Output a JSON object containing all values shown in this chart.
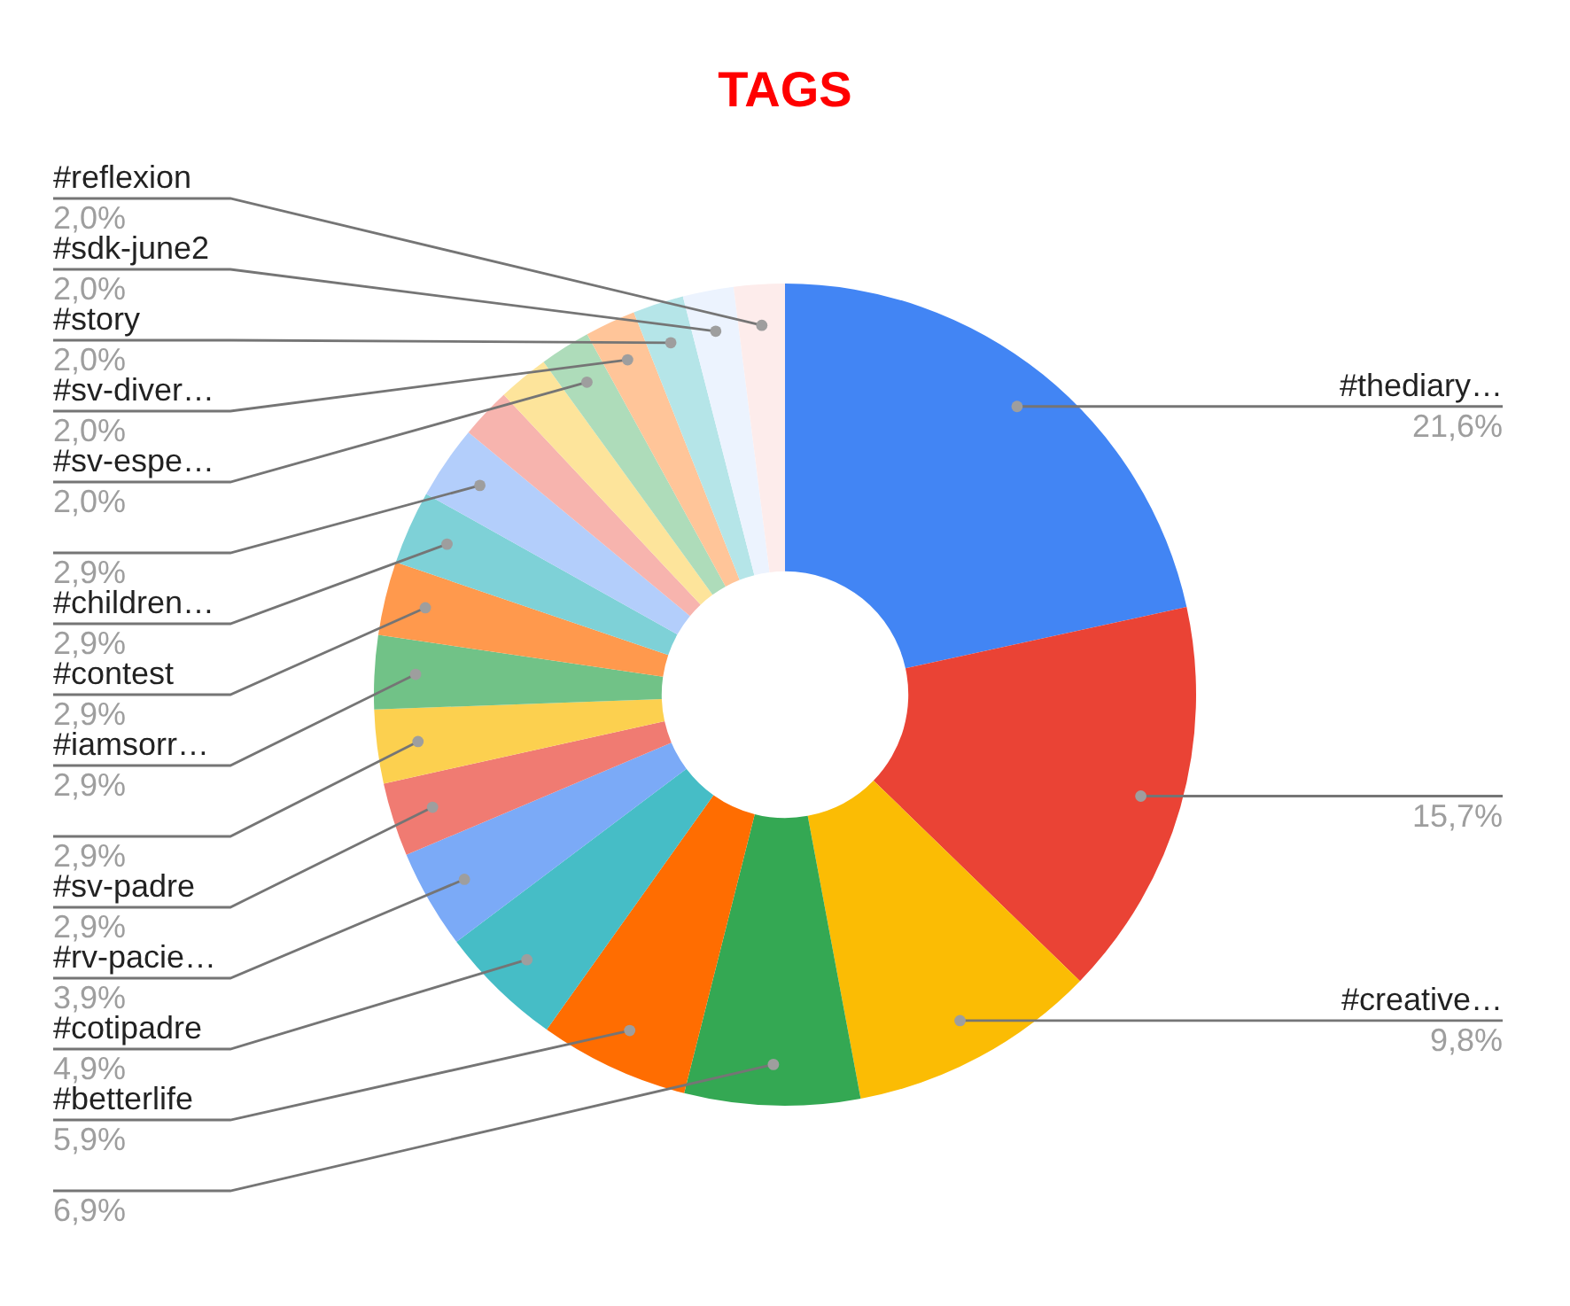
{
  "chart_data": {
    "type": "donut",
    "title": "TAGS",
    "categories": [
      "#thediary…",
      null,
      "#creative…",
      null,
      "#betterlife",
      "#cotipadre",
      "#rv-pacie…",
      "#sv-padre",
      null,
      "#iamsorr…",
      "#contest",
      "#children…",
      null,
      null,
      null,
      "#sv-espe…",
      "#sv-diver…",
      "#story",
      "#sdk-june2",
      "#reflexion"
    ],
    "values": [
      21.6,
      15.7,
      9.8,
      6.9,
      5.9,
      4.9,
      3.9,
      2.9,
      2.9,
      2.9,
      2.9,
      2.9,
      2.9,
      2.0,
      2.0,
      2.0,
      2.0,
      2.0,
      2.0,
      2.0
    ],
    "colors": [
      "#4285f4",
      "#ea4335",
      "#fbbc04",
      "#34a853",
      "#ff6d01",
      "#46bdc6",
      "#7baaf7",
      "#f07b72",
      "#fcd04f",
      "#71c287",
      "#ff994d",
      "#7ed1d7",
      "#b3cefb",
      "#f7b4ae",
      "#fde49b",
      "#aedcba",
      "#ffc599",
      "#b5e5e8",
      "#ecf3fe",
      "#fdeceb"
    ],
    "value_labels": [
      "21,6%",
      "15,7%",
      "9,8%",
      "6,9%",
      "5,9%",
      "4,9%",
      "3,9%",
      "2,9%",
      "2,9%",
      "2,9%",
      "2,9%",
      "2,9%",
      "2,9%",
      null,
      null,
      "2,0%",
      "2,0%",
      "2,0%",
      "2,0%",
      "2,0%"
    ]
  }
}
